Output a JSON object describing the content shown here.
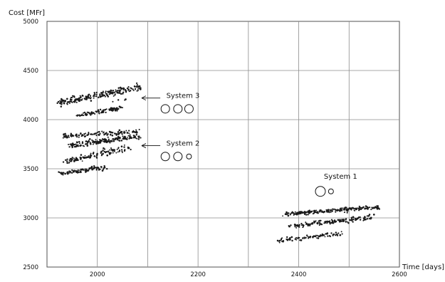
{
  "chart_data": {
    "type": "scatter",
    "title": "",
    "xlabel": "Time [days]",
    "ylabel": "Cost [MFr]",
    "xlim": [
      1900,
      2600
    ],
    "ylim": [
      2500,
      5000
    ],
    "x_ticks": [
      2000,
      2200,
      2400,
      2600
    ],
    "y_ticks": [
      2500,
      3000,
      3500,
      4000,
      4500,
      5000
    ],
    "x_tick_labels": [
      "2000",
      "2200",
      "2400",
      "2600"
    ],
    "y_tick_labels": [
      "2500",
      "3000",
      "3500",
      "4000",
      "4500",
      "5000"
    ],
    "grid": true,
    "legend": "none",
    "point_color": "#1a1a1a",
    "grid_color": "#8c8c8c",
    "series": [
      {
        "clusters": [
          {
            "x_range": [
              1925,
              2085
            ],
            "y_start": 4175,
            "y_end": 4330,
            "spread": 18,
            "count": 210
          },
          {
            "x_range": [
              1960,
              2050
            ],
            "y_start": 4040,
            "y_end": 4125,
            "spread": 12,
            "count": 95
          },
          {
            "x_range": [
              1990,
              2100
            ],
            "y_start": 4185,
            "y_end": 4215,
            "spread": 8,
            "count": 4
          }
        ]
      },
      {
        "clusters": [
          {
            "x_range": [
              1930,
              2080
            ],
            "y_start": 3830,
            "y_end": 3880,
            "spread": 12,
            "count": 120
          },
          {
            "x_range": [
              1940,
              2085
            ],
            "y_start": 3735,
            "y_end": 3830,
            "spread": 14,
            "count": 170
          },
          {
            "x_range": [
              1940,
              2065
            ],
            "y_start": 3580,
            "y_end": 3720,
            "spread": 15,
            "count": 115
          },
          {
            "x_range": [
              1925,
              2015
            ],
            "y_start": 3450,
            "y_end": 3515,
            "spread": 10,
            "count": 95
          }
        ]
      },
      {
        "clusters": [
          {
            "x_range": [
              2375,
              2560
            ],
            "y_start": 3040,
            "y_end": 3110,
            "spread": 10,
            "count": 210
          },
          {
            "x_range": [
              2385,
              2545
            ],
            "y_start": 2915,
            "y_end": 3005,
            "spread": 12,
            "count": 155
          },
          {
            "x_range": [
              2360,
              2485
            ],
            "y_start": 2770,
            "y_end": 2840,
            "spread": 10,
            "count": 85
          }
        ]
      }
    ],
    "annotations": [
      {
        "label": "System 3",
        "x": 2137,
        "y": 4220,
        "arrow_from": [
          2125,
          4220
        ],
        "arrow_to": [
          2088,
          4220
        ]
      },
      {
        "label": "System 2",
        "x": 2137,
        "y": 3735,
        "arrow_from": [
          2125,
          3735
        ],
        "arrow_to": [
          2088,
          3735
        ]
      },
      {
        "label": "System 1",
        "x": 2450,
        "y": 3400
      }
    ],
    "circle_markers": [
      {
        "x": 2135,
        "y": 4110,
        "r": 6
      },
      {
        "x": 2160,
        "y": 4110,
        "r": 6
      },
      {
        "x": 2182,
        "y": 4110,
        "r": 6
      },
      {
        "x": 2135,
        "y": 3625,
        "r": 6
      },
      {
        "x": 2160,
        "y": 3625,
        "r": 6
      },
      {
        "x": 2182,
        "y": 3625,
        "r": 3.5
      },
      {
        "x": 2443,
        "y": 3270,
        "r": 7
      },
      {
        "x": 2464,
        "y": 3270,
        "r": 3.5
      }
    ]
  }
}
